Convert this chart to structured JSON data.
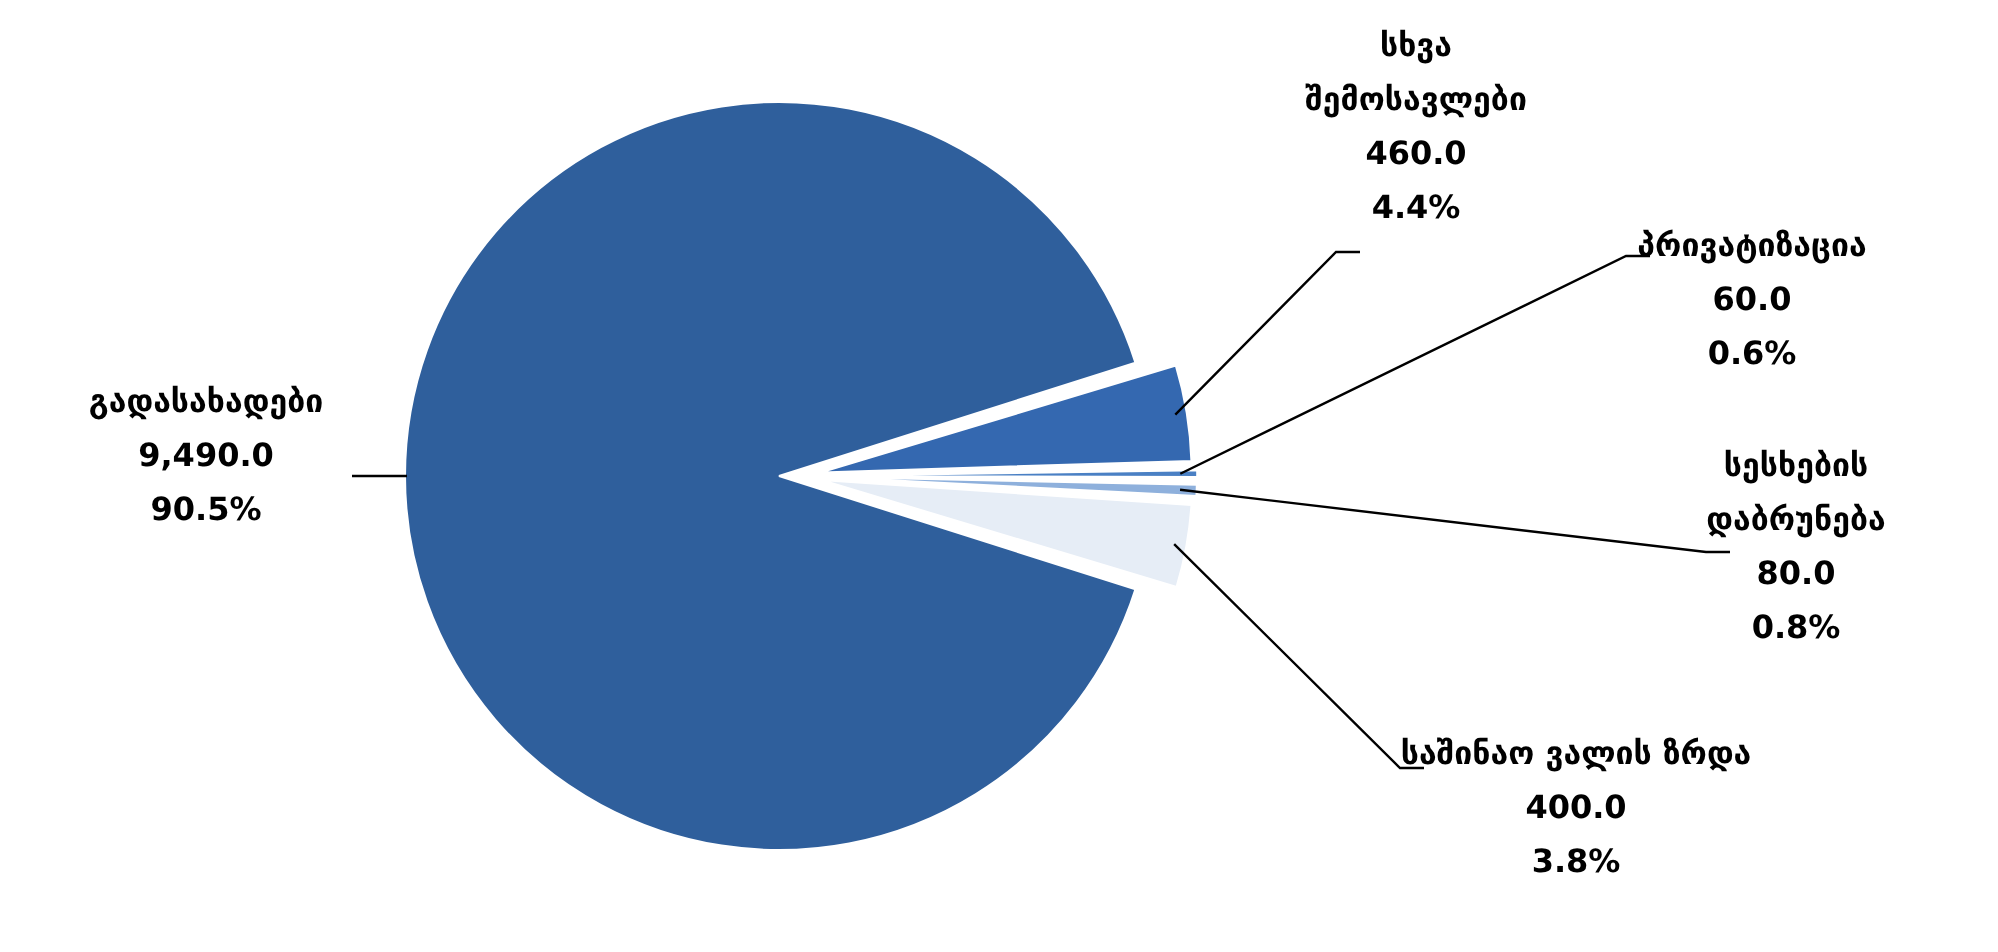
{
  "chart_data": {
    "type": "pie",
    "categories": [
      "სხვა შემოსავლები",
      "პრივატიზაცია",
      "სესხების დაბრუნება",
      "საშინაო ვალის ზრდა",
      "გადასახადები"
    ],
    "values": [
      460,
      60,
      80,
      400,
      9490
    ],
    "colors": [
      "#3468b0",
      "#4a80c4",
      "#8eb0dc",
      "#e6edf6",
      "#2f5f9c"
    ],
    "value_labels": [
      "460.0\n4.4%",
      "60.0\n0.6%",
      "80.0\n0.8%",
      "400.0\n3.8%",
      "9,490.0\n90.5%"
    ],
    "legend": false
  }
}
